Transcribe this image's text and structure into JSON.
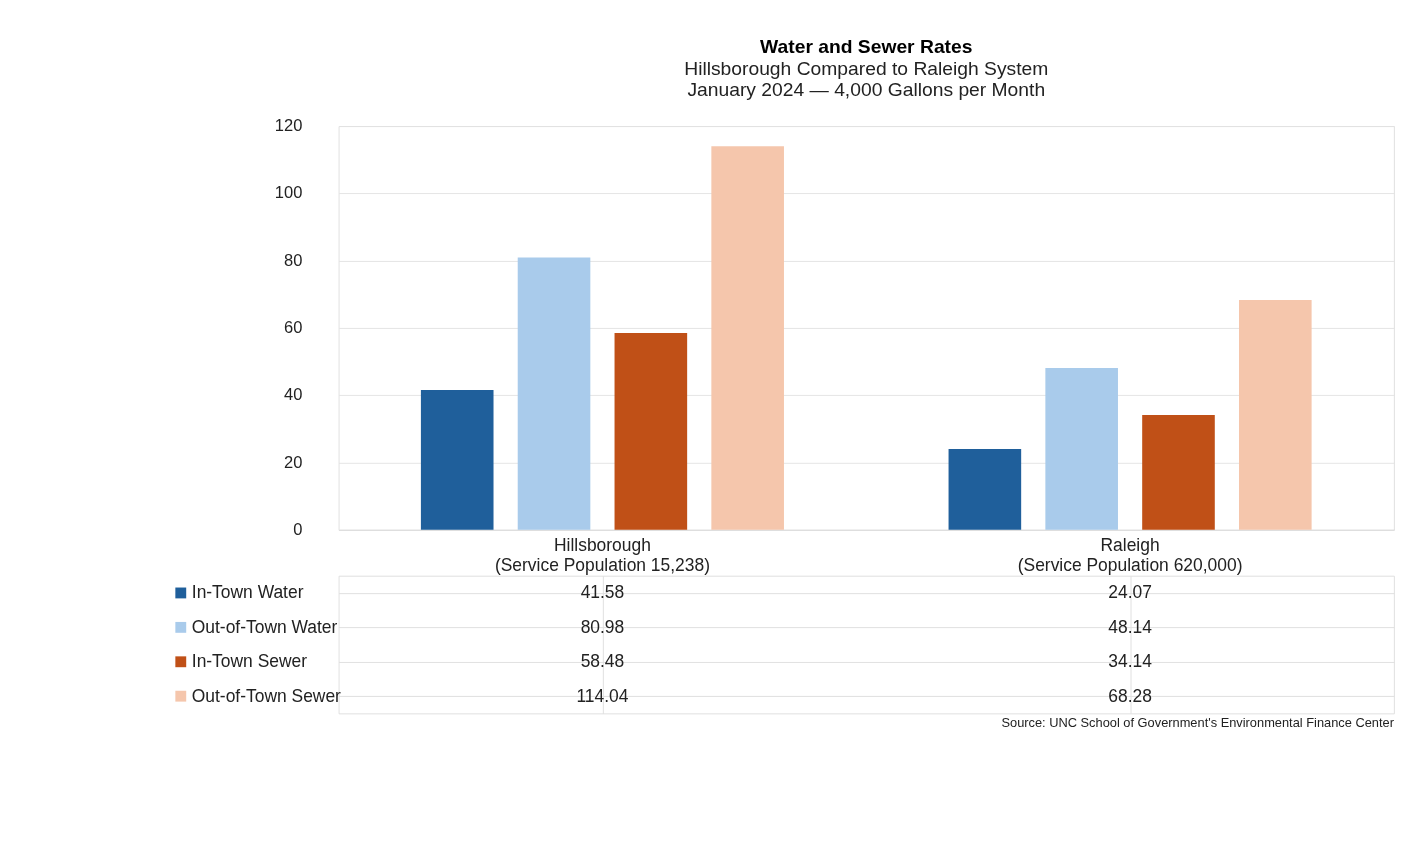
{
  "chart_data": {
    "type": "bar",
    "title": "Water and Sewer Rates",
    "subtitle": "Hillsborough Compared to Raleigh System\nJanuary 2024 — 4,000 Gallons per Month",
    "categories": [
      "Hillsborough\n(Service Population 15,238)",
      "Raleigh\n(Service Population 620,000)"
    ],
    "series": [
      {
        "name": "In-Town Water",
        "color": "#1f5f9b",
        "values": [
          41.58,
          24.07
        ]
      },
      {
        "name": "Out-of-Town Water",
        "color": "#a9cbeb",
        "values": [
          80.98,
          48.14
        ]
      },
      {
        "name": "In-Town Sewer",
        "color": "#c05017",
        "values": [
          58.48,
          34.14
        ]
      },
      {
        "name": "Out-of-Town Sewer",
        "color": "#f5c6ac",
        "values": [
          114.04,
          68.28
        ]
      }
    ],
    "ylim": [
      0,
      120
    ],
    "yticks": [
      0,
      20,
      40,
      60,
      80,
      100,
      120
    ],
    "grid": "y",
    "legend": "bottom",
    "data_labels": true,
    "annotations": [
      "Source: UNC School of Government's Environmental Finance Center"
    ]
  }
}
